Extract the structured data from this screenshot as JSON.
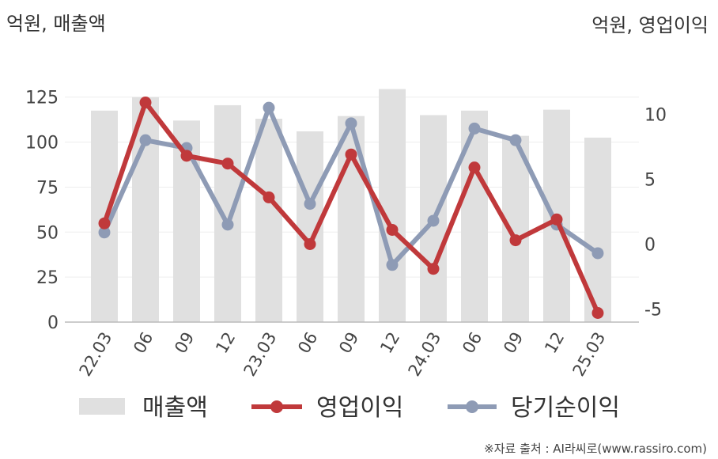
{
  "chart_data": {
    "type": "bar+line",
    "left_axis_title": "억원, 매출액",
    "right_axis_title": "억원, 영업이익",
    "categories": [
      "22.03",
      "06",
      "09",
      "12",
      "23.03",
      "06",
      "09",
      "12",
      "24.03",
      "06",
      "09",
      "12",
      "25.03"
    ],
    "left_axis": {
      "min": 0,
      "max": 135,
      "ticks": [
        0,
        25,
        50,
        75,
        100,
        125
      ]
    },
    "right_axis": {
      "min": -6,
      "max": 12.7,
      "ticks": [
        -5,
        0,
        5,
        10
      ],
      "tick_labels": [
        "-5",
        "0",
        "5",
        "10"
      ]
    },
    "series": [
      {
        "name": "매출액",
        "kind": "bar",
        "axis": "left",
        "color": "#e0e0e0",
        "values": [
          117.5,
          125,
          112,
          120.5,
          113,
          106,
          114.5,
          129.5,
          115,
          117.5,
          103.5,
          118,
          102.5
        ]
      },
      {
        "name": "영업이익",
        "kind": "line",
        "axis": "right",
        "color": "#c0393b",
        "values": [
          1.6,
          10.9,
          6.8,
          6.2,
          3.6,
          0.0,
          6.9,
          1.1,
          -1.9,
          5.9,
          0.3,
          1.9,
          -5.3
        ]
      },
      {
        "name": "당기순이익",
        "kind": "line",
        "axis": "right",
        "color": "#8e9bb5",
        "values": [
          0.9,
          8.0,
          7.4,
          1.5,
          10.5,
          3.1,
          9.3,
          -1.6,
          1.8,
          8.9,
          8.0,
          1.5,
          -0.7
        ]
      }
    ],
    "grid": true,
    "legend_position": "bottom"
  },
  "source_note": "※자료 출처 : AI라씨로(www.rassiro.com)"
}
